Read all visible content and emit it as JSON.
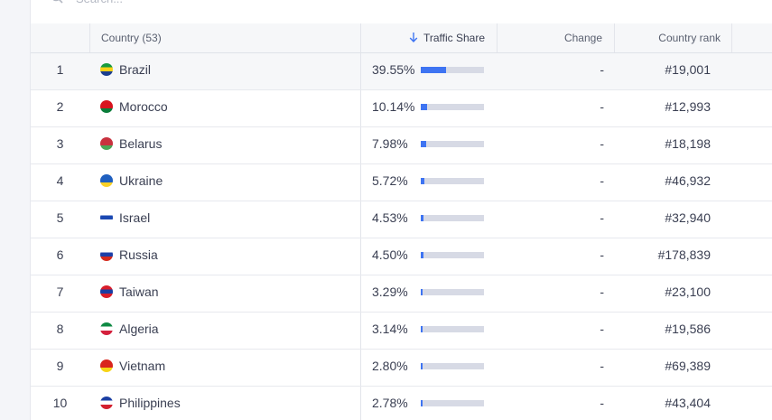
{
  "search": {
    "placeholder": "Search..."
  },
  "table": {
    "headers": {
      "country": "Country (53)",
      "traffic_share": "Traffic Share",
      "change": "Change",
      "country_rank": "Country rank"
    },
    "sort_icon": "arrow-down-icon",
    "accent_color": "#3e74f2",
    "track_color": "#d7dae5",
    "rows": [
      {
        "index": "1",
        "country": "Brazil",
        "flag_colors": [
          "#169b3e",
          "#f7d117",
          "#1d3f8f"
        ],
        "share": "39.55%",
        "share_fraction": 0.3955,
        "change": "-",
        "rank": "#19,001"
      },
      {
        "index": "2",
        "country": "Morocco",
        "flag_colors": [
          "#d8141e",
          "#d8141e",
          "#0a7d3a"
        ],
        "share": "10.14%",
        "share_fraction": 0.1014,
        "change": "-",
        "rank": "#12,993"
      },
      {
        "index": "3",
        "country": "Belarus",
        "flag_colors": [
          "#c8313e",
          "#c8313e",
          "#4aa657"
        ],
        "share": "7.98%",
        "share_fraction": 0.0798,
        "change": "-",
        "rank": "#18,198"
      },
      {
        "index": "4",
        "country": "Ukraine",
        "flag_colors": [
          "#1f5fbf",
          "#1f5fbf",
          "#f8d028"
        ],
        "share": "5.72%",
        "share_fraction": 0.0572,
        "change": "-",
        "rank": "#46,932"
      },
      {
        "index": "5",
        "country": "Israel",
        "flag_colors": [
          "#ffffff",
          "#1a48b2",
          "#ffffff"
        ],
        "share": "4.53%",
        "share_fraction": 0.0453,
        "change": "-",
        "rank": "#32,940"
      },
      {
        "index": "6",
        "country": "Russia",
        "flag_colors": [
          "#ffffff",
          "#1c3fa8",
          "#d52b1e"
        ],
        "share": "4.50%",
        "share_fraction": 0.045,
        "change": "-",
        "rank": "#178,839"
      },
      {
        "index": "7",
        "country": "Taiwan",
        "flag_colors": [
          "#d91e2b",
          "#1a3ea3",
          "#d91e2b"
        ],
        "share": "3.29%",
        "share_fraction": 0.0329,
        "change": "-",
        "rank": "#23,100"
      },
      {
        "index": "8",
        "country": "Algeria",
        "flag_colors": [
          "#0e8a43",
          "#ffffff",
          "#d4213d"
        ],
        "share": "3.14%",
        "share_fraction": 0.0314,
        "change": "-",
        "rank": "#19,586"
      },
      {
        "index": "9",
        "country": "Vietnam",
        "flag_colors": [
          "#d9251d",
          "#d9251d",
          "#f7d417"
        ],
        "share": "2.80%",
        "share_fraction": 0.028,
        "change": "-",
        "rank": "#69,389"
      },
      {
        "index": "10",
        "country": "Philippines",
        "flag_colors": [
          "#1b3fa3",
          "#ffffff",
          "#d3202f"
        ],
        "share": "2.78%",
        "share_fraction": 0.0278,
        "change": "-",
        "rank": "#43,404"
      }
    ]
  }
}
